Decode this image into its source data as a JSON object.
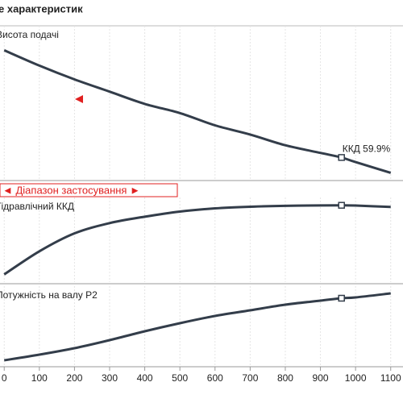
{
  "title": "е характеристик",
  "range_label": "◄ Діапазон застосування ►",
  "annotation": "ККД   59.9%",
  "chart_data": [
    {
      "type": "line",
      "label": "Висота подачі",
      "color": "#333d4a",
      "x": [
        0,
        100,
        200,
        300,
        400,
        500,
        600,
        700,
        800,
        900,
        960,
        1000,
        1100
      ],
      "values": [
        84,
        74,
        65,
        57,
        49,
        43,
        35,
        29,
        22,
        17,
        14,
        11,
        4
      ],
      "xlim": [
        -12,
        1135
      ],
      "ylim": [
        0,
        100
      ],
      "marker_x": 960
    },
    {
      "type": "line",
      "label": "Гідравлічний ККД",
      "color": "#333d4a",
      "x": [
        0,
        100,
        200,
        300,
        400,
        500,
        600,
        700,
        800,
        900,
        960,
        1000,
        1100
      ],
      "values": [
        6,
        24,
        38,
        46,
        51,
        55,
        57.5,
        58.8,
        59.5,
        59.8,
        59.9,
        59.7,
        58.6
      ],
      "xlim": [
        -12,
        1135
      ],
      "ylim": [
        0,
        66
      ],
      "marker_x": 960
    },
    {
      "type": "line",
      "label": "Потужність на валу  P2",
      "color": "#333d4a",
      "x": [
        0,
        100,
        200,
        300,
        400,
        500,
        600,
        700,
        800,
        900,
        960,
        1000,
        1100
      ],
      "values": [
        8,
        15,
        23,
        33,
        44,
        54,
        63,
        70,
        77,
        82,
        85,
        86,
        91
      ],
      "xlim": [
        -12,
        1135
      ],
      "ylim": [
        0,
        100
      ],
      "marker_x": 960,
      "xticks": [
        0,
        100,
        200,
        300,
        400,
        500,
        600,
        700,
        800,
        900,
        1000,
        1100
      ]
    }
  ]
}
